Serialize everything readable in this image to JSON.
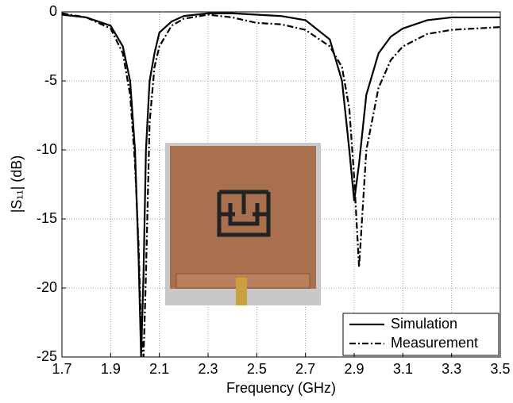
{
  "chart_data": {
    "type": "line",
    "x_label": "Frequency (GHz)",
    "y_label": "|S₁₁| (dB)",
    "x": [
      1.7,
      1.8,
      1.9,
      1.95,
      1.98,
      2.0,
      2.015,
      2.025,
      2.035,
      2.045,
      2.06,
      2.08,
      2.1,
      2.15,
      2.2,
      2.3,
      2.4,
      2.5,
      2.6,
      2.7,
      2.8,
      2.85,
      2.88,
      2.9,
      2.92,
      2.95,
      3.0,
      3.05,
      3.1,
      3.2,
      3.3,
      3.4,
      3.5
    ],
    "series": [
      {
        "name": "Simulation",
        "color": "#000000",
        "dash": "none",
        "values": [
          -0.2,
          -0.4,
          -1.0,
          -2.5,
          -5,
          -10,
          -18,
          -25,
          -19,
          -10,
          -5,
          -3,
          -1.5,
          -0.7,
          -0.3,
          -0.1,
          -0.1,
          -0.2,
          -0.3,
          -0.6,
          -2.0,
          -5,
          -10,
          -13.7,
          -11,
          -6,
          -3,
          -1.8,
          -1.2,
          -0.6,
          -0.4,
          -0.4,
          -0.4
        ]
      },
      {
        "name": "Measurement",
        "color": "#000000",
        "dash": "8 3 2 3",
        "values": [
          -0.1,
          -0.4,
          -1.2,
          -3,
          -6,
          -11,
          -17,
          -23,
          -25,
          -19,
          -8,
          -4,
          -2.5,
          -1,
          -0.5,
          -0.2,
          -0.4,
          -0.8,
          -0.9,
          -1.3,
          -2.5,
          -4,
          -7,
          -12,
          -18.5,
          -10,
          -5.5,
          -3.5,
          -2.5,
          -1.6,
          -1.3,
          -1.2,
          -1.1
        ]
      }
    ],
    "xlim": [
      1.7,
      3.5
    ],
    "xticks": [
      1.7,
      1.9,
      2.1,
      2.3,
      2.5,
      2.7,
      2.9,
      3.1,
      3.3,
      3.5
    ],
    "ylim": [
      -25,
      0
    ],
    "yticks": [
      -25,
      -20,
      -15,
      -10,
      -5,
      0
    ],
    "grid": true,
    "legend": "lower-right"
  }
}
